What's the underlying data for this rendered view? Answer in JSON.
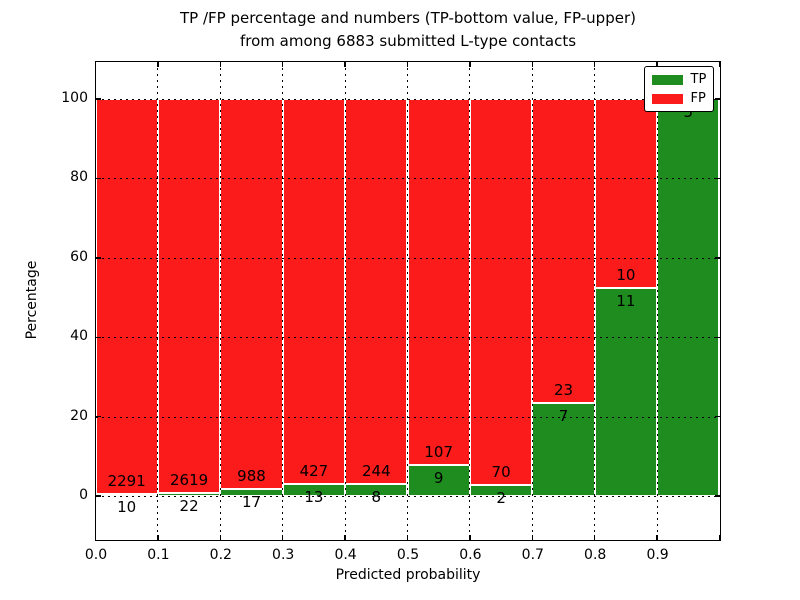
{
  "title": {
    "line1": "TP /FP percentage and numbers (TP-bottom value, FP-upper)",
    "line2": "from among 6883 submitted L-type contacts"
  },
  "axis": {
    "xlabel": "Predicted probability",
    "ylabel": "Percentage"
  },
  "legend": [
    {
      "label": "TP",
      "color": "#1e8c1e"
    },
    {
      "label": "FP",
      "color": "#fb1b1b"
    }
  ],
  "chart_data": {
    "type": "bar",
    "stacked": true,
    "normalized_to_percent": 100,
    "title": "TP /FP percentage and numbers (TP-bottom value, FP-upper) from among 6883 submitted L-type contacts",
    "xlabel": "Predicted probability",
    "ylabel": "Percentage",
    "total_contacts": 6883,
    "bins": [
      "0.0-0.1",
      "0.1-0.2",
      "0.2-0.3",
      "0.3-0.4",
      "0.4-0.5",
      "0.5-0.6",
      "0.6-0.7",
      "0.7-0.8",
      "0.8-0.9",
      "0.9-1.0"
    ],
    "series": [
      {
        "name": "TP",
        "color": "#1e8c1e",
        "counts": [
          10,
          22,
          17,
          13,
          8,
          9,
          2,
          7,
          11,
          5
        ]
      },
      {
        "name": "FP",
        "color": "#fb1b1b",
        "counts": [
          2291,
          2619,
          988,
          427,
          244,
          107,
          70,
          23,
          10,
          0
        ]
      }
    ],
    "tp_percent_of_bin": [
      0.43,
      0.83,
      1.69,
      2.95,
      3.17,
      7.76,
      2.78,
      23.33,
      52.38,
      100.0
    ],
    "xticks": [
      "0.0",
      "0.1",
      "0.2",
      "0.3",
      "0.4",
      "0.5",
      "0.6",
      "0.7",
      "0.8",
      "0.9"
    ],
    "yticks": [
      0,
      20,
      40,
      60,
      80,
      100
    ],
    "xlim": [
      0.0,
      1.0
    ],
    "ylim": [
      -10.9,
      109.4
    ],
    "grid": "dotted",
    "legend_position": "upper right"
  }
}
